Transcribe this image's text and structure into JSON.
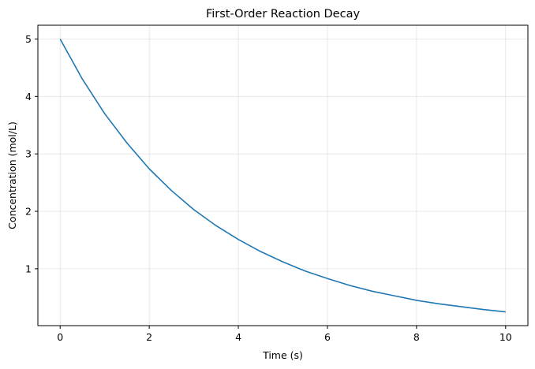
{
  "chart_data": {
    "type": "line",
    "title": "First-Order Reaction Decay",
    "xlabel": "Time (s)",
    "ylabel": "Concentration (mol/L)",
    "xlim": [
      -0.5,
      10.5
    ],
    "ylim": [
      0.01,
      5.24
    ],
    "xticks": [
      0,
      2,
      4,
      6,
      8,
      10
    ],
    "yticks": [
      1,
      2,
      3,
      4,
      5
    ],
    "grid": true,
    "legend": "none",
    "series": [
      {
        "color": "#1f77b4",
        "x": [
          0,
          0.5,
          1,
          1.5,
          2,
          2.5,
          3,
          3.5,
          4,
          4.5,
          5,
          5.5,
          6,
          6.5,
          7,
          7.5,
          8,
          8.5,
          9,
          9.5,
          10
        ],
        "y": [
          5.0,
          4.3,
          3.7,
          3.19,
          2.74,
          2.36,
          2.03,
          1.75,
          1.51,
          1.3,
          1.12,
          0.96,
          0.83,
          0.71,
          0.61,
          0.53,
          0.45,
          0.39,
          0.34,
          0.29,
          0.25
        ]
      }
    ]
  }
}
